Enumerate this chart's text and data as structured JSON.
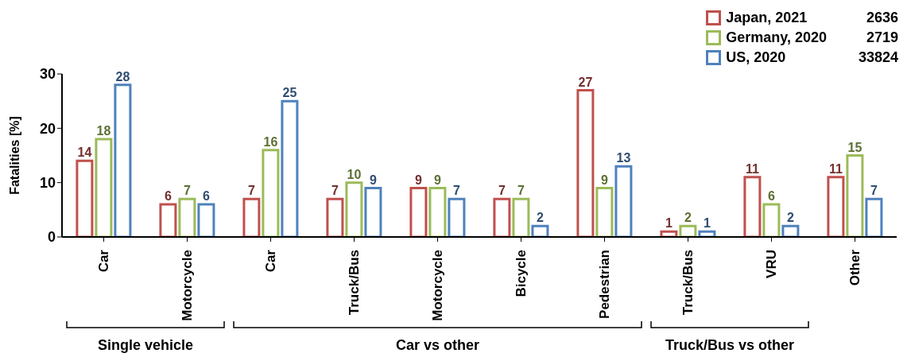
{
  "chart_data": {
    "type": "bar",
    "ylabel": "Fatalities [%]",
    "categories": [
      "Car",
      "Motorcycle",
      "Car",
      "Truck/Bus",
      "Motorcycle",
      "Bicycle",
      "Pedestrian",
      "Truck/Bus",
      "VRU",
      "Other"
    ],
    "series": [
      {
        "name": "Japan, 2021",
        "color": "#c0504d",
        "values": [
          14,
          6,
          7,
          7,
          9,
          7,
          27,
          1,
          11,
          11
        ]
      },
      {
        "name": "Germany, 2020",
        "color": "#9bbb59",
        "values": [
          18,
          7,
          16,
          10,
          9,
          7,
          9,
          2,
          6,
          15
        ]
      },
      {
        "name": "US, 2020",
        "color": "#4f81bd",
        "values": [
          28,
          6,
          25,
          9,
          7,
          2,
          13,
          1,
          2,
          7
        ]
      }
    ],
    "ylim": [
      0,
      30
    ],
    "yticks": [
      0,
      10,
      20,
      30
    ],
    "grid": false,
    "legend": "top right",
    "data_labels": true,
    "annotations": [
      "2636",
      "2719",
      "33824",
      "Single vehicle",
      "Car vs other",
      "Truck/Bus vs other"
    ]
  }
}
